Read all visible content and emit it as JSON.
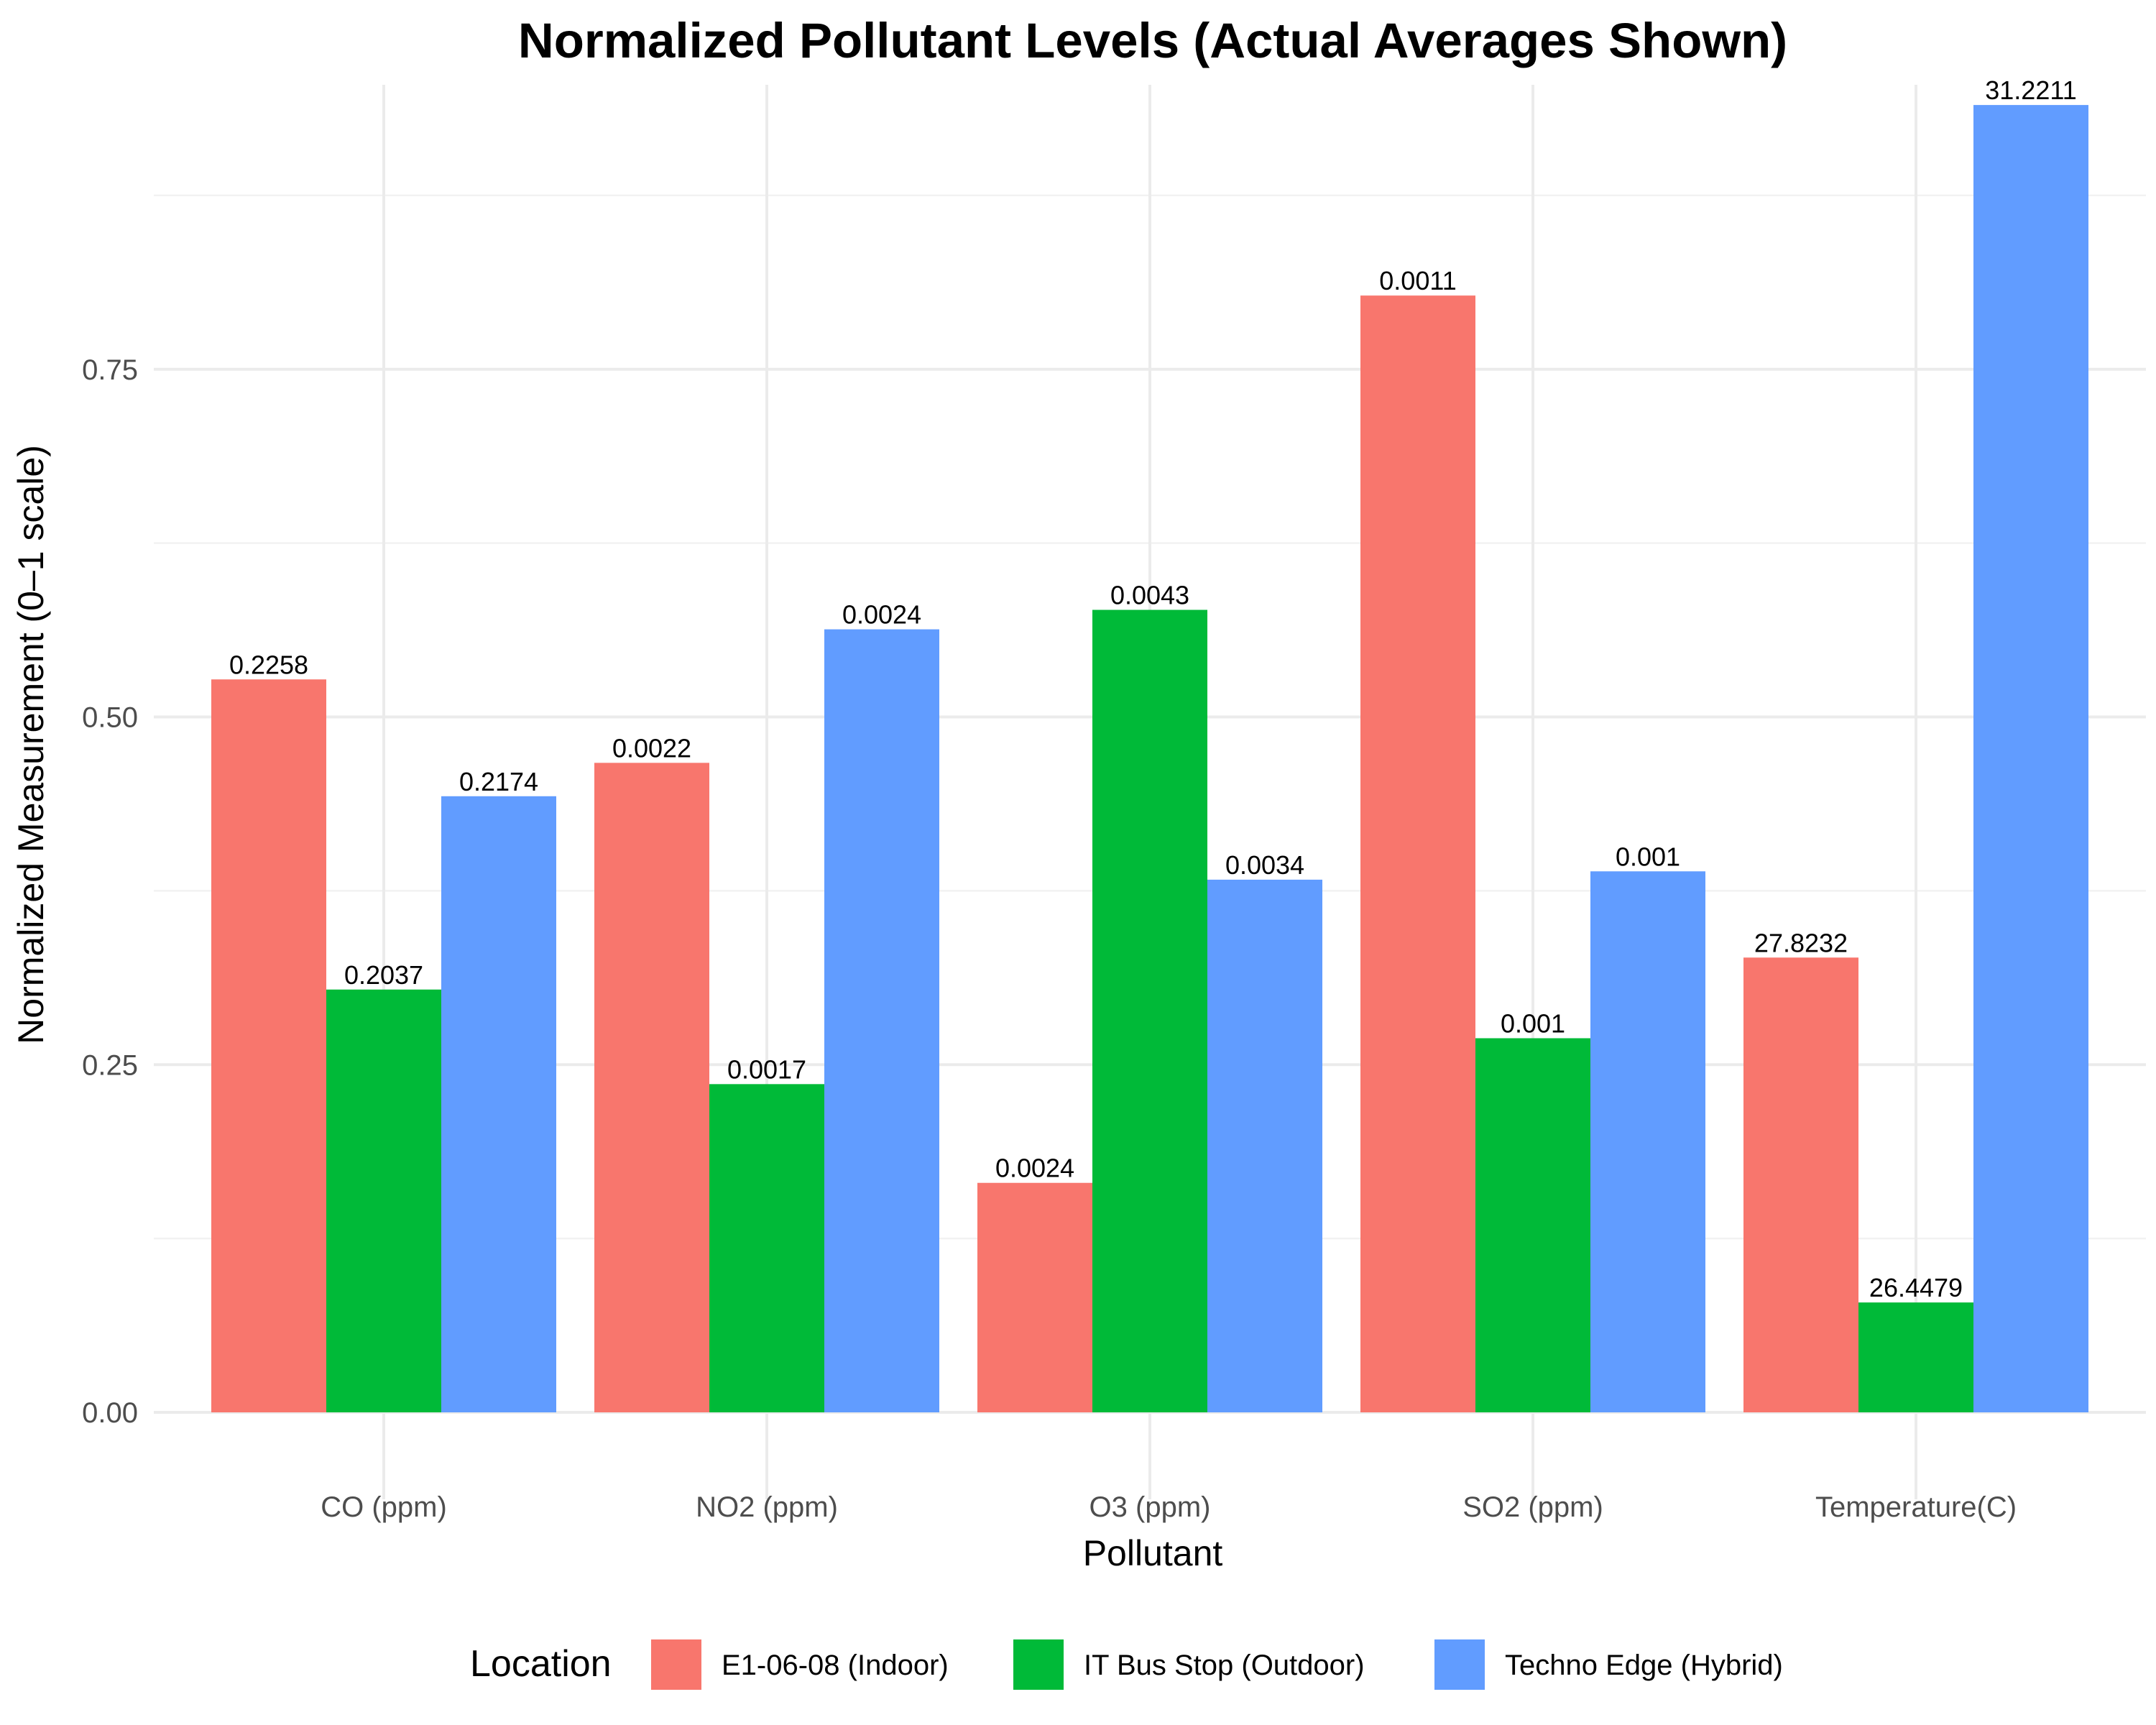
{
  "chart_data": {
    "type": "bar",
    "title": "Normalized Pollutant Levels (Actual Averages Shown)",
    "xlabel": "Pollutant",
    "ylabel": "Normalized Measurement (0–1 scale)",
    "ylim": [
      0,
      1
    ],
    "y_ticks": [
      "0.00",
      "0.25",
      "0.50",
      "0.75"
    ],
    "y_tick_values": [
      0,
      0.25,
      0.5,
      0.75
    ],
    "grid": true,
    "legend_placement": "bottom",
    "legend_title": "Location",
    "categories": [
      "CO (ppm)",
      "NO2 (ppm)",
      "O3 (ppm)",
      "SO2 (ppm)",
      "Temperature(C)"
    ],
    "series": [
      {
        "name": "E1-06-08 (Indoor)",
        "color": "#F8766D",
        "values": [
          0.527,
          0.467,
          0.165,
          0.803,
          0.327
        ],
        "labels": [
          "0.2258",
          "0.0022",
          "0.0024",
          "0.0011",
          "27.8232"
        ]
      },
      {
        "name": "IT Bus Stop (Outdoor)",
        "color": "#00BA38",
        "values": [
          0.304,
          0.236,
          0.577,
          0.269,
          0.079
        ],
        "labels": [
          "0.2037",
          "0.0017",
          "0.0043",
          "0.001",
          "26.4479"
        ]
      },
      {
        "name": "Techno Edge (Hybrid)",
        "color": "#619CFF",
        "values": [
          0.443,
          0.563,
          0.383,
          0.389,
          0.94
        ],
        "labels": [
          "0.2174",
          "0.0024",
          "0.0034",
          "0.001",
          "31.2211"
        ]
      }
    ]
  }
}
